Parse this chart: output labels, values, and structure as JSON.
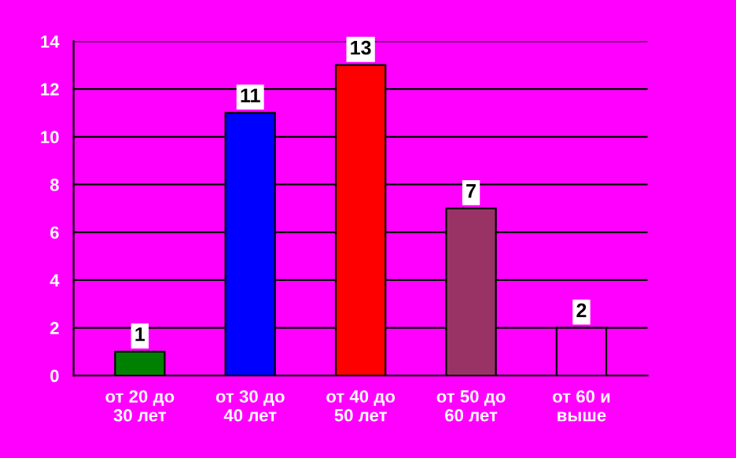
{
  "chart_data": {
    "type": "bar",
    "categories": [
      "от 20 до\n30 лет",
      "от 30 до\n40 лет",
      "от 40 до\n50 лет",
      "от 50 до\n60 лет",
      "от 60 и\nвыше"
    ],
    "values": [
      1,
      11,
      13,
      7,
      2
    ],
    "colors": [
      "#008000",
      "#0000ff",
      "#ff0000",
      "#993366",
      "#ff00ff"
    ],
    "ylim": [
      0,
      14
    ],
    "yticks": [
      0,
      2,
      4,
      6,
      8,
      10,
      12,
      14
    ],
    "grid": "y",
    "data_labels": true
  }
}
